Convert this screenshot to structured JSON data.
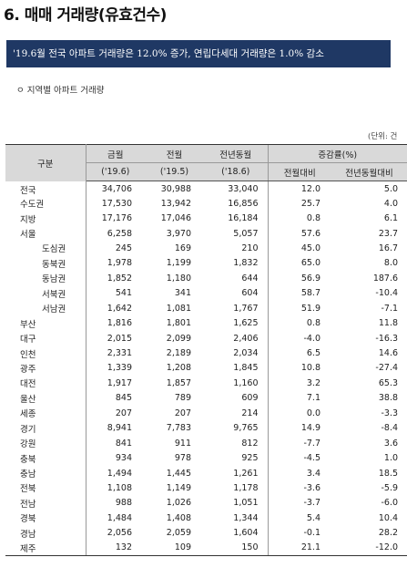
{
  "title": "6. 매매 거래량(유효건수)",
  "summary": "'19.6월 전국 아파트 거래량은 12.0% 증가, 연립다세대 거래량은 1.0% 감소",
  "section_title": "ㅇ 지역별 아파트 거래량",
  "unit_note": "(단위: 건",
  "table": {
    "headers": {
      "region": "구분",
      "current": "금월",
      "current_period": "('19.6)",
      "previous": "전월",
      "previous_period": "('19.5)",
      "year_ago": "전년동월",
      "year_ago_period": "('18.6)",
      "change_rate": "증감률(%)",
      "mom": "전월대비",
      "yoy": "전년동월대비"
    },
    "rows": [
      {
        "region": "전국",
        "sub": false,
        "current": "34,706",
        "previous": "30,988",
        "year_ago": "33,040",
        "mom": "12.0",
        "yoy": "5.0"
      },
      {
        "region": "수도권",
        "sub": false,
        "current": "17,530",
        "previous": "13,942",
        "year_ago": "16,856",
        "mom": "25.7",
        "yoy": "4.0"
      },
      {
        "region": "지방",
        "sub": false,
        "current": "17,176",
        "previous": "17,046",
        "year_ago": "16,184",
        "mom": "0.8",
        "yoy": "6.1"
      },
      {
        "region": "서울",
        "sub": false,
        "current": "6,258",
        "previous": "3,970",
        "year_ago": "5,057",
        "mom": "57.6",
        "yoy": "23.7"
      },
      {
        "region": "도심권",
        "sub": true,
        "current": "245",
        "previous": "169",
        "year_ago": "210",
        "mom": "45.0",
        "yoy": "16.7"
      },
      {
        "region": "동북권",
        "sub": true,
        "current": "1,978",
        "previous": "1,199",
        "year_ago": "1,832",
        "mom": "65.0",
        "yoy": "8.0"
      },
      {
        "region": "동남권",
        "sub": true,
        "current": "1,852",
        "previous": "1,180",
        "year_ago": "644",
        "mom": "56.9",
        "yoy": "187.6"
      },
      {
        "region": "서북권",
        "sub": true,
        "current": "541",
        "previous": "341",
        "year_ago": "604",
        "mom": "58.7",
        "yoy": "-10.4"
      },
      {
        "region": "서남권",
        "sub": true,
        "current": "1,642",
        "previous": "1,081",
        "year_ago": "1,767",
        "mom": "51.9",
        "yoy": "-7.1"
      },
      {
        "region": "부산",
        "sub": false,
        "current": "1,816",
        "previous": "1,801",
        "year_ago": "1,625",
        "mom": "0.8",
        "yoy": "11.8"
      },
      {
        "region": "대구",
        "sub": false,
        "current": "2,015",
        "previous": "2,099",
        "year_ago": "2,406",
        "mom": "-4.0",
        "yoy": "-16.3"
      },
      {
        "region": "인천",
        "sub": false,
        "current": "2,331",
        "previous": "2,189",
        "year_ago": "2,034",
        "mom": "6.5",
        "yoy": "14.6"
      },
      {
        "region": "광주",
        "sub": false,
        "current": "1,339",
        "previous": "1,208",
        "year_ago": "1,845",
        "mom": "10.8",
        "yoy": "-27.4"
      },
      {
        "region": "대전",
        "sub": false,
        "current": "1,917",
        "previous": "1,857",
        "year_ago": "1,160",
        "mom": "3.2",
        "yoy": "65.3"
      },
      {
        "region": "울산",
        "sub": false,
        "current": "845",
        "previous": "789",
        "year_ago": "609",
        "mom": "7.1",
        "yoy": "38.8"
      },
      {
        "region": "세종",
        "sub": false,
        "current": "207",
        "previous": "207",
        "year_ago": "214",
        "mom": "0.0",
        "yoy": "-3.3"
      },
      {
        "region": "경기",
        "sub": false,
        "current": "8,941",
        "previous": "7,783",
        "year_ago": "9,765",
        "mom": "14.9",
        "yoy": "-8.4"
      },
      {
        "region": "강원",
        "sub": false,
        "current": "841",
        "previous": "911",
        "year_ago": "812",
        "mom": "-7.7",
        "yoy": "3.6"
      },
      {
        "region": "충북",
        "sub": false,
        "current": "934",
        "previous": "978",
        "year_ago": "925",
        "mom": "-4.5",
        "yoy": "1.0"
      },
      {
        "region": "충남",
        "sub": false,
        "current": "1,494",
        "previous": "1,445",
        "year_ago": "1,261",
        "mom": "3.4",
        "yoy": "18.5"
      },
      {
        "region": "전북",
        "sub": false,
        "current": "1,108",
        "previous": "1,149",
        "year_ago": "1,178",
        "mom": "-3.6",
        "yoy": "-5.9"
      },
      {
        "region": "전남",
        "sub": false,
        "current": "988",
        "previous": "1,026",
        "year_ago": "1,051",
        "mom": "-3.7",
        "yoy": "-6.0"
      },
      {
        "region": "경북",
        "sub": false,
        "current": "1,484",
        "previous": "1,408",
        "year_ago": "1,344",
        "mom": "5.4",
        "yoy": "10.4"
      },
      {
        "region": "경남",
        "sub": false,
        "current": "2,056",
        "previous": "2,059",
        "year_ago": "1,604",
        "mom": "-0.1",
        "yoy": "28.2"
      },
      {
        "region": "제주",
        "sub": false,
        "current": "132",
        "previous": "109",
        "year_ago": "150",
        "mom": "21.1",
        "yoy": "-12.0"
      }
    ]
  }
}
